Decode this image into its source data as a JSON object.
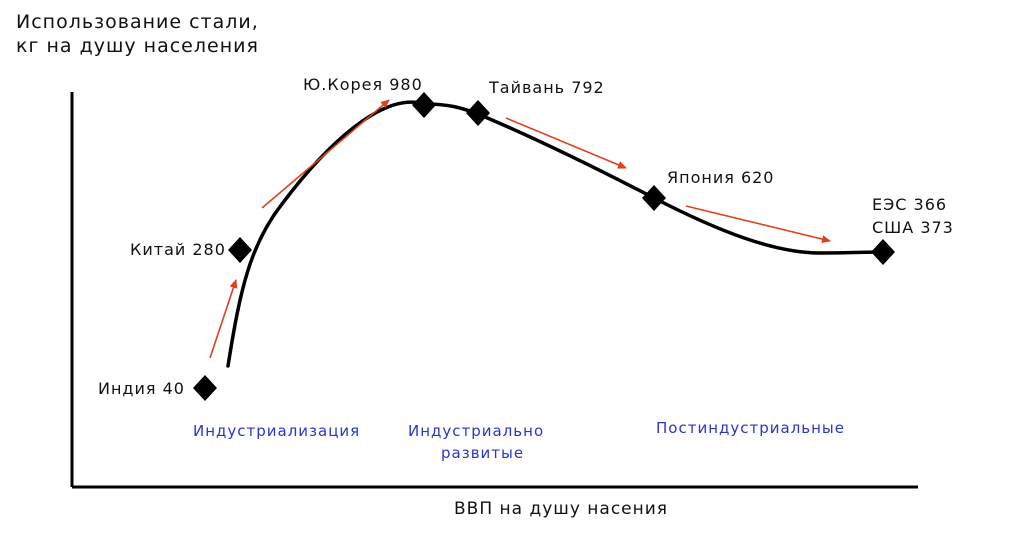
{
  "chart_data": {
    "type": "line",
    "ylabel_line1": "Использование стали,",
    "ylabel_line2": "кг на душу населения",
    "xlabel": "ВВП на душу насения",
    "points": [
      {
        "label": "Индия 40"
      },
      {
        "label": "Китай 280"
      },
      {
        "label": "Ю.Корея 980"
      },
      {
        "label": "Тайвань 792"
      },
      {
        "label": "Япония 620"
      },
      {
        "label_line1": "ЕЭС 366",
        "label_line2": "США 373"
      }
    ],
    "stages": [
      {
        "line1": "Индустриализация"
      },
      {
        "line1": "Индустриально",
        "line2": "развитые"
      },
      {
        "line1": "Постиндустриальные"
      }
    ],
    "colors": {
      "curve": "#000000",
      "arrow": "#e0401e",
      "stage_text": "#2b35c8",
      "axis": "#000000"
    }
  }
}
